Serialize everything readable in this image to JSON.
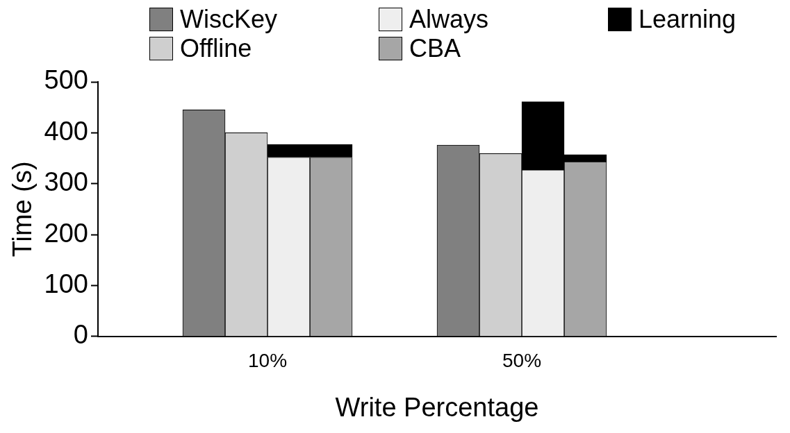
{
  "chart_data": {
    "type": "bar",
    "xlabel": "Write Percentage",
    "ylabel": "Time (s)",
    "categories": [
      null,
      null,
      null,
      "10%",
      null,
      null,
      null,
      null,
      null,
      "50%",
      null,
      null,
      null,
      null,
      null,
      null
    ],
    "series": [
      {
        "name": "WiscKey",
        "color": "#808080",
        "values": [
          null,
          null,
          445,
          null,
          null,
          null,
          null,
          null,
          376,
          null,
          null,
          null,
          null,
          null,
          null,
          null
        ]
      },
      {
        "name": "Offline",
        "color": "#cfcfcf",
        "values": [
          null,
          null,
          null,
          400,
          null,
          null,
          null,
          null,
          null,
          359,
          null,
          null,
          null,
          null,
          null,
          null
        ]
      },
      {
        "name": "Always",
        "color": "#eeeeee",
        "values": [
          null,
          null,
          null,
          null,
          352,
          null,
          null,
          null,
          null,
          null,
          327,
          null,
          null,
          null,
          null,
          null
        ]
      },
      {
        "name": "CBA",
        "color": "#a6a6a6",
        "values": [
          null,
          null,
          null,
          null,
          null,
          352,
          null,
          null,
          null,
          null,
          null,
          343,
          null,
          null,
          null,
          null
        ]
      },
      {
        "name": "Learning",
        "color": "#000000",
        "values": [
          null,
          null,
          null,
          null,
          25,
          25,
          null,
          null,
          null,
          null,
          134,
          14,
          null,
          null,
          null,
          null
        ]
      }
    ],
    "stacked": true,
    "ylim": [
      0,
      500
    ],
    "yticks": [
      0,
      100,
      200,
      300,
      400,
      500
    ],
    "grid": false,
    "legend": "top"
  }
}
